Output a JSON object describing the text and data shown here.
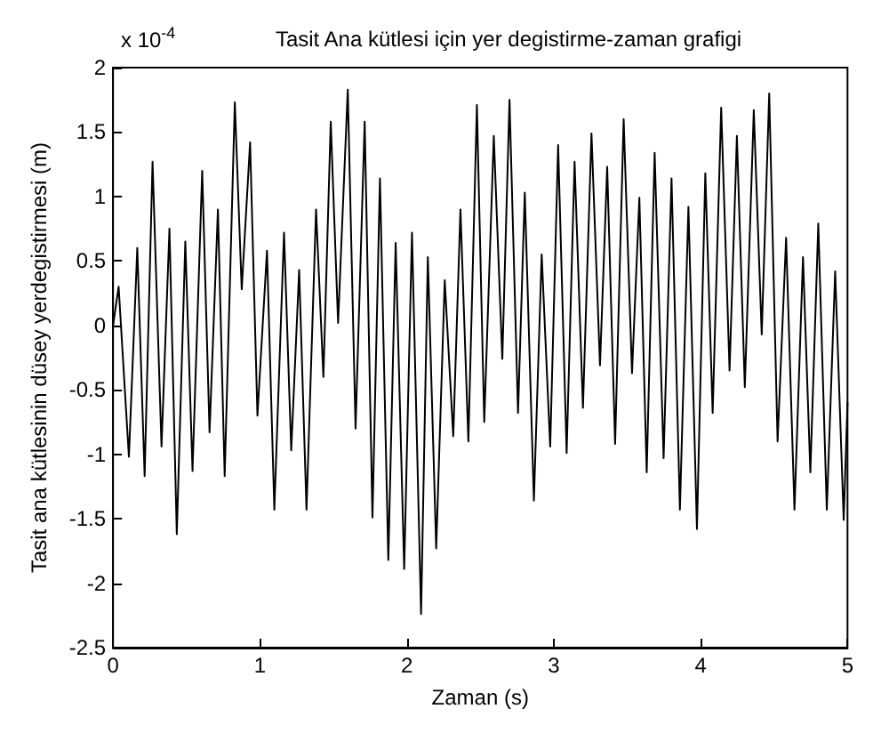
{
  "chart_data": {
    "type": "line",
    "title": "Tasit Ana kütlesi için yer degistirme-zaman grafigi",
    "xlabel": "Zaman (s)",
    "ylabel": "Tasit ana kütlesinin düsey yerdegistirmesi (m)",
    "annotations": [
      "x 10$^{-4}$"
    ],
    "xlim": [
      0,
      5
    ],
    "xticks": [
      0,
      1,
      2,
      3,
      4,
      5
    ],
    "ylim": [
      -2.5,
      2
    ],
    "yticks": [
      -2.5,
      -2,
      -1.5,
      -1,
      -0.5,
      0,
      0.5,
      1,
      1.5,
      2
    ],
    "grid": false,
    "marker": "none",
    "line_style": "solid",
    "series": [
      {
        "color": "#000000",
        "x": [
          0,
          0.038,
          0.108,
          0.165,
          0.215,
          0.269,
          0.33,
          0.384,
          0.434,
          0.492,
          0.541,
          0.607,
          0.657,
          0.714,
          0.76,
          0.829,
          0.876,
          0.933,
          0.983,
          1.048,
          1.098,
          1.164,
          1.213,
          1.267,
          1.317,
          1.382,
          1.432,
          1.482,
          1.532,
          1.598,
          1.651,
          1.713,
          1.766,
          1.817,
          1.874,
          1.924,
          1.982,
          2.035,
          2.097,
          2.143,
          2.2,
          2.258,
          2.316,
          2.365,
          2.419,
          2.477,
          2.527,
          2.592,
          2.65,
          2.699,
          2.757,
          2.803,
          2.865,
          2.918,
          2.976,
          3.03,
          3.088,
          3.142,
          3.199,
          3.257,
          3.315,
          3.364,
          3.418,
          3.476,
          3.533,
          3.583,
          3.633,
          3.687,
          3.748,
          3.802,
          3.859,
          3.917,
          3.975,
          4.032,
          4.082,
          4.14,
          4.197,
          4.247,
          4.301,
          4.362,
          4.416,
          4.467,
          4.524,
          4.582,
          4.639,
          4.697,
          4.747,
          4.801,
          4.859,
          4.916,
          4.974,
          5
        ],
        "values": [
          0,
          0.3,
          -1.02,
          0.6,
          -1.17,
          1.27,
          -0.94,
          0.75,
          -1.62,
          0.65,
          -1.13,
          1.2,
          -0.83,
          0.9,
          -1.17,
          1.73,
          0.28,
          1.42,
          -0.7,
          0.58,
          -1.43,
          0.72,
          -0.97,
          0.43,
          -1.43,
          0.9,
          -0.4,
          1.58,
          0.02,
          1.83,
          -0.8,
          1.58,
          -1.49,
          1.14,
          -1.82,
          0.64,
          -1.89,
          0.72,
          -2.24,
          0.53,
          -1.73,
          0.35,
          -0.86,
          0.9,
          -0.9,
          1.71,
          -0.75,
          1.47,
          -0.26,
          1.75,
          -0.68,
          1.03,
          -1.36,
          0.55,
          -0.94,
          1.4,
          -0.99,
          1.27,
          -0.64,
          1.49,
          -0.31,
          1.23,
          -0.92,
          1.6,
          -0.37,
          0.99,
          -1.14,
          1.34,
          -1.03,
          1.14,
          -1.43,
          0.92,
          -1.58,
          1.18,
          -0.68,
          1.69,
          -0.35,
          1.47,
          -0.48,
          1.67,
          -0.07,
          1.8,
          -0.9,
          0.68,
          -1.43,
          0.53,
          -1.14,
          0.79,
          -1.43,
          0.42,
          -1.51,
          -0.6
        ]
      }
    ]
  }
}
